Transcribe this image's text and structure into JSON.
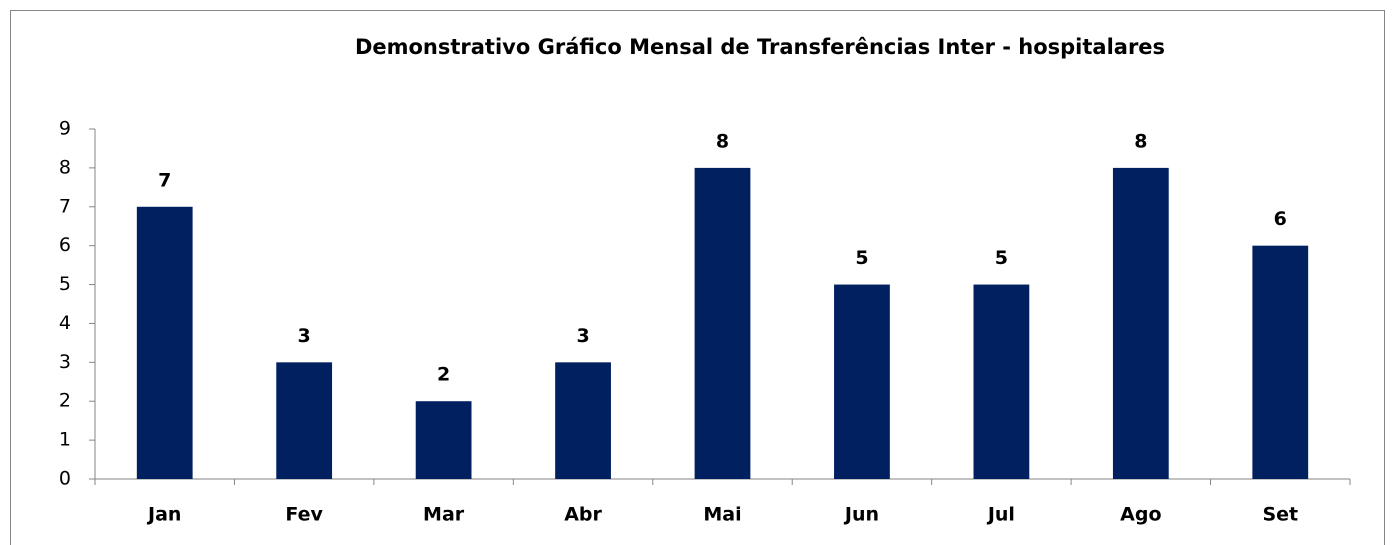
{
  "chart_data": {
    "type": "bar",
    "title": "Demonstrativo Gráfico Mensal de Transferências Inter - hospitalares",
    "categories": [
      "Jan",
      "Fev",
      "Mar",
      "Abr",
      "Mai",
      "Jun",
      "Jul",
      "Ago",
      "Set"
    ],
    "values": [
      7,
      3,
      2,
      3,
      8,
      5,
      5,
      8,
      6
    ],
    "color": "#002060",
    "ylim": [
      0,
      9
    ],
    "yticks": [
      0,
      1,
      2,
      3,
      4,
      5,
      6,
      7,
      8,
      9
    ],
    "grid": false
  }
}
